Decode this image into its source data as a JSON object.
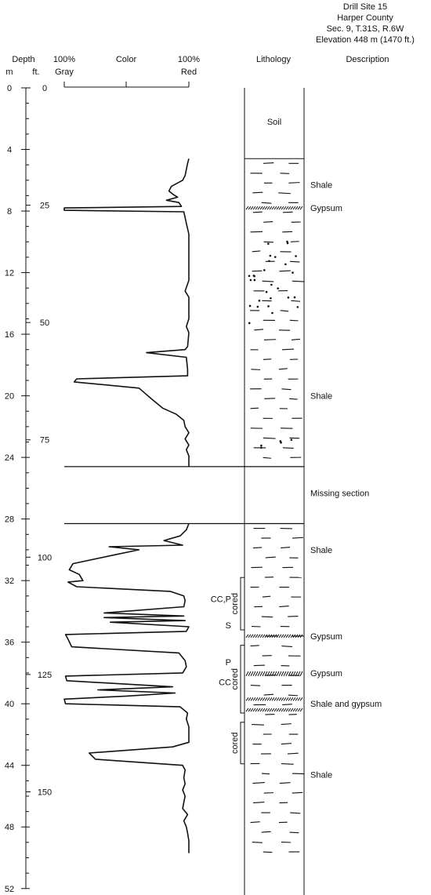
{
  "site_info": [
    "Drill Site 15",
    "Harper County",
    "Sec. 9, T.31S, R.6W",
    "Elevation 448 m (1470 ft.)"
  ],
  "headers": {
    "depth": "Depth",
    "m": "m",
    "ft": "ft.",
    "gray_pct": "100%",
    "gray": "Gray",
    "color": "Color",
    "red_pct": "100%",
    "red": "Red",
    "lithology": "Lithology",
    "description": "Description"
  },
  "depth_axis": {
    "unit": "m",
    "range": [
      0,
      52
    ],
    "m_labels": [
      0,
      4,
      8,
      12,
      16,
      20,
      24,
      28,
      32,
      36,
      40,
      44,
      48,
      52
    ],
    "ft_labels": [
      0,
      25,
      50,
      75,
      100,
      125,
      150
    ]
  },
  "color_curve": {
    "scale": "0 = 100% Gray, 100 = 100% Red",
    "segments": [
      [
        [
          4.6,
          100
        ],
        [
          4.9,
          99
        ],
        [
          5.3,
          98
        ],
        [
          5.7,
          97
        ],
        [
          6.0,
          95
        ],
        [
          6.4,
          86
        ],
        [
          6.7,
          84
        ],
        [
          6.9,
          87
        ],
        [
          7.1,
          91
        ],
        [
          7.3,
          82
        ],
        [
          7.45,
          92
        ],
        [
          7.7,
          94
        ],
        [
          7.8,
          0
        ],
        [
          7.95,
          0
        ],
        [
          8.05,
          96
        ],
        [
          8.8,
          98
        ],
        [
          9.5,
          100
        ],
        [
          11.0,
          100
        ],
        [
          12.5,
          100
        ],
        [
          13.2,
          97
        ],
        [
          13.6,
          100
        ],
        [
          15.0,
          100
        ],
        [
          15.5,
          98
        ],
        [
          15.9,
          100
        ],
        [
          16.8,
          99
        ],
        [
          17.0,
          97
        ],
        [
          17.2,
          66
        ],
        [
          17.5,
          98
        ],
        [
          18.3,
          99
        ],
        [
          18.7,
          99
        ],
        [
          18.9,
          10
        ],
        [
          19.1,
          8
        ],
        [
          19.5,
          60
        ],
        [
          20.2,
          70
        ],
        [
          20.8,
          79
        ],
        [
          21.2,
          90
        ],
        [
          21.6,
          96
        ],
        [
          22.0,
          97
        ],
        [
          22.4,
          100
        ],
        [
          22.8,
          97
        ],
        [
          23.2,
          100
        ],
        [
          23.5,
          98
        ],
        [
          23.9,
          100
        ],
        [
          24.3,
          100
        ],
        [
          24.6,
          100
        ]
      ],
      [
        [
          28.3,
          100
        ],
        [
          28.7,
          98
        ],
        [
          29.1,
          93
        ],
        [
          29.4,
          80
        ],
        [
          29.7,
          95
        ],
        [
          29.8,
          36
        ],
        [
          30.0,
          60
        ],
        [
          30.3,
          42
        ],
        [
          30.9,
          7
        ],
        [
          31.3,
          4
        ],
        [
          31.6,
          12
        ],
        [
          32.0,
          15
        ],
        [
          32.1,
          3
        ],
        [
          32.4,
          10
        ],
        [
          32.7,
          85
        ],
        [
          33.0,
          96
        ],
        [
          33.3,
          97
        ],
        [
          33.7,
          96
        ],
        [
          34.1,
          32
        ],
        [
          34.3,
          96
        ],
        [
          34.4,
          32
        ],
        [
          34.6,
          97
        ],
        [
          34.7,
          37
        ],
        [
          35.0,
          100
        ],
        [
          35.3,
          98
        ],
        [
          35.5,
          1
        ],
        [
          35.8,
          3
        ],
        [
          36.3,
          6
        ],
        [
          36.7,
          92
        ],
        [
          37.2,
          97
        ],
        [
          37.6,
          98
        ],
        [
          38.0,
          95
        ],
        [
          38.2,
          1
        ],
        [
          38.5,
          2
        ],
        [
          38.9,
          87
        ],
        [
          39.1,
          27
        ],
        [
          39.3,
          89
        ],
        [
          39.5,
          50
        ],
        [
          39.7,
          0
        ],
        [
          40.0,
          1
        ],
        [
          40.2,
          93
        ],
        [
          40.6,
          99
        ],
        [
          41.0,
          98
        ],
        [
          41.5,
          100
        ],
        [
          41.8,
          100
        ],
        [
          42.2,
          100
        ],
        [
          42.5,
          100
        ],
        [
          42.8,
          87
        ],
        [
          43.2,
          20
        ],
        [
          43.6,
          25
        ],
        [
          44.0,
          95
        ],
        [
          44.3,
          97
        ],
        [
          44.8,
          96
        ],
        [
          45.2,
          97
        ],
        [
          45.6,
          95
        ],
        [
          46.0,
          97
        ],
        [
          46.4,
          96
        ],
        [
          46.8,
          95
        ],
        [
          47.2,
          99
        ],
        [
          47.6,
          96
        ],
        [
          48.0,
          98
        ],
        [
          48.4,
          99
        ],
        [
          48.9,
          100
        ],
        [
          49.5,
          100
        ],
        [
          49.7,
          100
        ]
      ]
    ]
  },
  "lithology_boundaries_m": [
    0,
    4.6,
    24.6,
    28.3
  ],
  "lithology_gypsum_beds_m": [
    [
      7.7,
      7.9
    ],
    [
      35.5,
      35.7
    ],
    [
      37.9,
      38.2
    ]
  ],
  "lithology_shale_gypsum_bed_m": [
    39.6,
    40.5
  ],
  "cored_intervals": [
    {
      "label": "cored",
      "top_m": 31.8,
      "bottom_m": 35.2
    },
    {
      "label": "cored",
      "top_m": 36.2,
      "bottom_m": 40.6
    },
    {
      "label": "cored",
      "top_m": 41.2,
      "bottom_m": 43.9
    }
  ],
  "sample_labels": [
    {
      "text": "CC,P",
      "depth_m": 33.2
    },
    {
      "text": "S",
      "depth_m": 34.9
    },
    {
      "text": "P",
      "depth_m": 37.3
    },
    {
      "text": "CC",
      "depth_m": 38.6
    }
  ],
  "descriptions": [
    {
      "text": "Soil",
      "depth_m": 2.2
    },
    {
      "text": "Shale",
      "depth_m": 6.3
    },
    {
      "text": "Gypsum",
      "depth_m": 7.8
    },
    {
      "text": "Shale",
      "depth_m": 20.0
    },
    {
      "text": "Missing section",
      "depth_m": 26.3
    },
    {
      "text": "Shale",
      "depth_m": 30.0
    },
    {
      "text": "Gypsum",
      "depth_m": 35.6
    },
    {
      "text": "Gypsum",
      "depth_m": 38.0
    },
    {
      "text": "Shale and gypsum",
      "depth_m": 40.0
    },
    {
      "text": "Shale",
      "depth_m": 44.6
    }
  ]
}
